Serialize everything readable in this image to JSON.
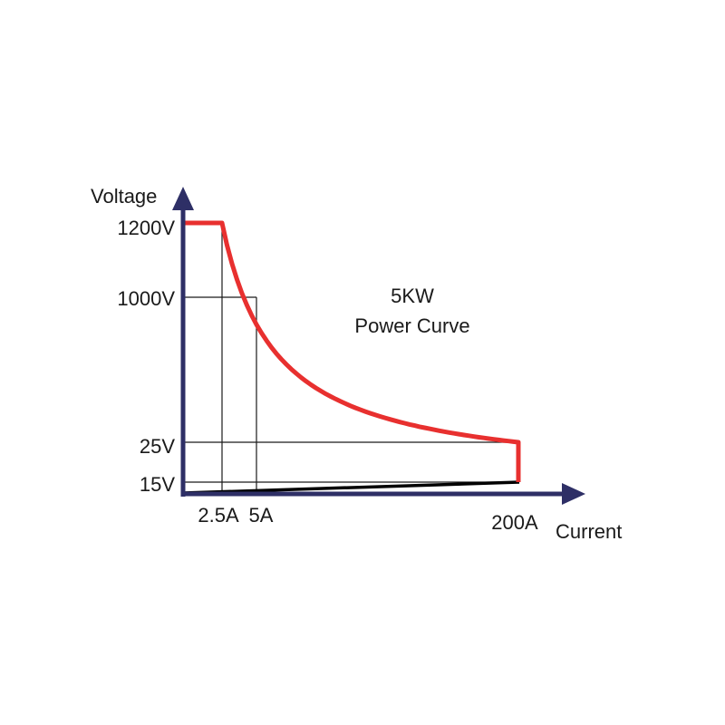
{
  "chart_data": {
    "type": "line",
    "annotation_lines": [
      "5KW",
      "Power Curve"
    ],
    "xlabel": "Current",
    "ylabel": "Voltage",
    "y_ticks": [
      {
        "label": "1200V",
        "name": "ytick-1200v"
      },
      {
        "label": "1000V",
        "name": "ytick-1000v"
      },
      {
        "label": "25V",
        "name": "ytick-25v"
      },
      {
        "label": "15V",
        "name": "ytick-15v"
      }
    ],
    "x_ticks": [
      {
        "label": "2.5A",
        "name": "xtick-2-5a"
      },
      {
        "label": "5A",
        "name": "xtick-5a"
      },
      {
        "label": "200A",
        "name": "xtick-200a"
      }
    ],
    "power_kw": 5,
    "series": [
      {
        "points": [
          [
            0,
            1200
          ],
          [
            2.5,
            1200
          ],
          [
            5,
            1000
          ],
          [
            200,
            25
          ],
          [
            200,
            15
          ]
        ]
      }
    ],
    "colors": {
      "axis": "#2e2f66",
      "curve": "#e8302f",
      "grid": "#1a1a1a",
      "lower_boundary": "#000000"
    }
  }
}
